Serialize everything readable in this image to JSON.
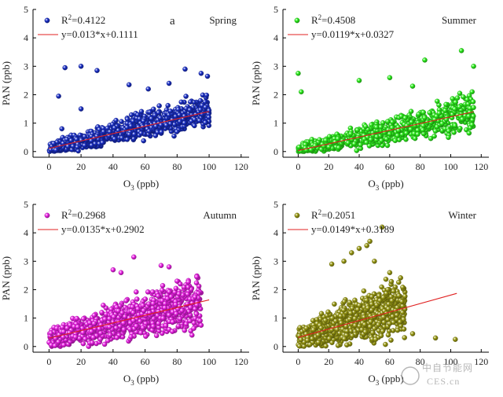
{
  "chart_data": [
    {
      "type": "scatter",
      "season": "Spring",
      "panel_letter": "a",
      "xlabel_main": "O",
      "xlabel_sub": "3",
      "xlabel_unit": " (ppb)",
      "ylabel": "PAN (ppb)",
      "xlim": [
        -10,
        125
      ],
      "ylim": [
        -0.2,
        5
      ],
      "xticks": [
        0,
        20,
        40,
        60,
        80,
        100,
        120
      ],
      "yticks": [
        0,
        1,
        2,
        3,
        4,
        5
      ],
      "marker_color": "#1a2fc8",
      "r2_label": "R",
      "r2_value": "=0.4122",
      "equation": "y=0.013*x+0.1111",
      "fit": {
        "slope": 0.013,
        "intercept": 0.1111,
        "x_start": 0,
        "x_end": 100
      },
      "point_cloud": {
        "count": 950,
        "x_range": [
          0,
          100
        ],
        "seed": 11,
        "spread": 0.34
      },
      "points": [
        [
          10,
          2.95
        ],
        [
          20,
          3.0
        ],
        [
          30,
          2.85
        ],
        [
          20,
          1.5
        ],
        [
          6,
          1.95
        ],
        [
          85,
          2.9
        ],
        [
          95,
          2.75
        ],
        [
          99,
          2.65
        ],
        [
          50,
          2.35
        ],
        [
          62,
          2.2
        ],
        [
          75,
          2.4
        ],
        [
          8,
          0.8
        ]
      ]
    },
    {
      "type": "scatter",
      "season": "Summer",
      "panel_letter": "",
      "xlabel_main": "O",
      "xlabel_sub": "3",
      "xlabel_unit": " (ppb)",
      "ylabel": "PAN (ppb)",
      "xlim": [
        -10,
        125
      ],
      "ylim": [
        -0.2,
        5
      ],
      "xticks": [
        0,
        20,
        40,
        60,
        80,
        100,
        120
      ],
      "yticks": [
        0,
        1,
        2,
        3,
        4,
        5
      ],
      "marker_color": "#2cf01c",
      "r2_label": "R",
      "r2_value": "=0.4508",
      "equation": "y=0.0119*x+0.0327",
      "fit": {
        "slope": 0.0119,
        "intercept": 0.0327,
        "x_start": 0,
        "x_end": 115
      },
      "point_cloud": {
        "count": 800,
        "x_range": [
          0,
          115
        ],
        "seed": 23,
        "spread": 0.38
      },
      "points": [
        [
          0,
          2.75
        ],
        [
          2,
          2.1
        ],
        [
          40,
          2.5
        ],
        [
          83,
          3.22
        ],
        [
          107,
          3.55
        ],
        [
          115,
          3.0
        ],
        [
          114,
          2.1
        ],
        [
          60,
          2.6
        ],
        [
          75,
          2.3
        ],
        [
          112,
          0.65
        ]
      ]
    },
    {
      "type": "scatter",
      "season": "Autumn",
      "panel_letter": "",
      "xlabel_main": "O",
      "xlabel_sub": "3",
      "xlabel_unit": " (ppb)",
      "ylabel": "PAN (ppb)",
      "xlim": [
        -10,
        125
      ],
      "ylim": [
        -0.2,
        5
      ],
      "xticks": [
        0,
        20,
        40,
        60,
        80,
        100,
        120
      ],
      "yticks": [
        0,
        1,
        2,
        3,
        4,
        5
      ],
      "marker_color": "#ee22e8",
      "r2_label": "R",
      "r2_value": "=0.2968",
      "equation": "y=0.0135*x+0.2902",
      "fit": {
        "slope": 0.0135,
        "intercept": 0.2902,
        "x_start": 0,
        "x_end": 100
      },
      "point_cloud": {
        "count": 1100,
        "x_range": [
          0,
          95
        ],
        "seed": 37,
        "spread": 0.55
      },
      "points": [
        [
          53,
          3.15
        ],
        [
          70,
          2.85
        ],
        [
          75,
          2.8
        ],
        [
          80,
          2.3
        ],
        [
          88,
          0.9
        ],
        [
          95,
          0.75
        ],
        [
          45,
          2.6
        ],
        [
          40,
          2.7
        ]
      ]
    },
    {
      "type": "scatter",
      "season": "Winter",
      "panel_letter": "",
      "xlabel_main": "O",
      "xlabel_sub": "3",
      "xlabel_unit": " (ppb)",
      "ylabel": "PAN (ppb)",
      "xlim": [
        -10,
        125
      ],
      "ylim": [
        -0.2,
        5
      ],
      "xticks": [
        0,
        20,
        40,
        60,
        80,
        100,
        120
      ],
      "yticks": [
        0,
        1,
        2,
        3,
        4,
        5
      ],
      "marker_color": "#9a9a14",
      "r2_label": "R",
      "r2_value": "=0.2051",
      "equation": "y=0.0149*x+0.3189",
      "fit": {
        "slope": 0.0149,
        "intercept": 0.3189,
        "x_start": 0,
        "x_end": 104
      },
      "point_cloud": {
        "count": 900,
        "x_range": [
          0,
          70
        ],
        "seed": 51,
        "spread": 0.6
      },
      "points": [
        [
          45,
          3.55
        ],
        [
          47,
          3.7
        ],
        [
          40,
          3.45
        ],
        [
          35,
          3.3
        ],
        [
          22,
          2.9
        ],
        [
          50,
          3.0
        ],
        [
          60,
          2.6
        ],
        [
          75,
          0.45
        ],
        [
          90,
          0.3
        ],
        [
          103,
          0.25
        ],
        [
          55,
          4.2
        ],
        [
          30,
          3.0
        ]
      ]
    }
  ],
  "watermark": {
    "line1": "中自节能网",
    "line2": "CES.cn"
  }
}
